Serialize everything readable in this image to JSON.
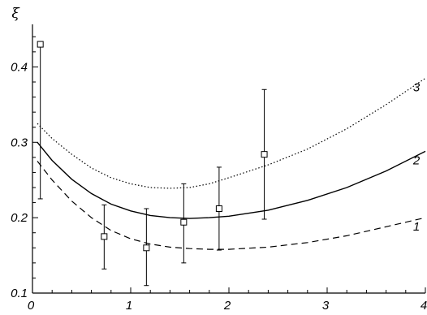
{
  "chart_data": {
    "type": "line",
    "title": "",
    "xlabel": "",
    "ylabel": "ξ",
    "xlim": [
      0,
      4
    ],
    "ylim": [
      0.1,
      0.45
    ],
    "xticks": [
      "0",
      "1",
      "2",
      "3",
      "4"
    ],
    "yticks": [
      "0.1",
      "0.2",
      "0.3",
      "0.4"
    ],
    "grid": false,
    "legend": "none",
    "series": [
      {
        "name": "1",
        "style": "dashed",
        "x": [
          0.05,
          0.2,
          0.4,
          0.6,
          0.8,
          1.0,
          1.2,
          1.4,
          1.6,
          1.8,
          2.0,
          2.4,
          2.8,
          3.2,
          3.6,
          4.0
        ],
        "y": [
          0.275,
          0.25,
          0.222,
          0.2,
          0.183,
          0.172,
          0.165,
          0.161,
          0.159,
          0.158,
          0.158,
          0.161,
          0.167,
          0.176,
          0.188,
          0.2
        ]
      },
      {
        "name": "2",
        "style": "solid",
        "x": [
          0.05,
          0.2,
          0.4,
          0.6,
          0.8,
          1.0,
          1.2,
          1.4,
          1.6,
          1.8,
          2.0,
          2.4,
          2.8,
          3.2,
          3.6,
          4.0
        ],
        "y": [
          0.3,
          0.276,
          0.251,
          0.232,
          0.218,
          0.209,
          0.203,
          0.2,
          0.199,
          0.2,
          0.202,
          0.21,
          0.223,
          0.24,
          0.262,
          0.288
        ]
      },
      {
        "name": "3",
        "style": "dotted",
        "x": [
          0.05,
          0.2,
          0.4,
          0.6,
          0.8,
          1.0,
          1.2,
          1.4,
          1.6,
          1.8,
          2.0,
          2.4,
          2.8,
          3.2,
          3.6,
          4.0
        ],
        "y": [
          0.325,
          0.305,
          0.284,
          0.266,
          0.253,
          0.245,
          0.24,
          0.239,
          0.24,
          0.245,
          0.253,
          0.27,
          0.291,
          0.318,
          0.35,
          0.385
        ]
      }
    ],
    "points": {
      "marker": "square",
      "x": [
        0.08,
        0.73,
        1.16,
        1.54,
        1.9,
        2.36
      ],
      "y": [
        0.43,
        0.175,
        0.16,
        0.194,
        0.212,
        0.284
      ],
      "yerr_low": [
        0.225,
        0.132,
        0.11,
        0.14,
        0.157,
        0.198
      ],
      "yerr_high": [
        0.43,
        0.217,
        0.212,
        0.245,
        0.267,
        0.37
      ]
    }
  }
}
